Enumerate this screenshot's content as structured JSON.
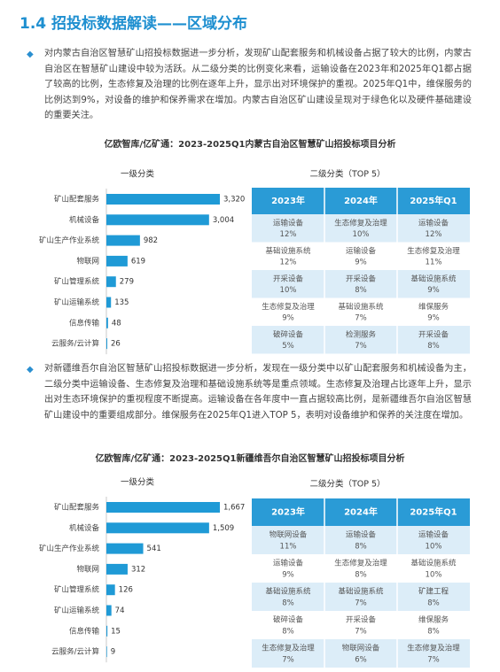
{
  "header": {
    "title": "1.4 招投标数据解读——区域分布"
  },
  "sections": [
    {
      "paragraph": "对内蒙古自治区智慧矿山招投标数据进一步分析，发现矿山配套服务和机械设备占据了较大的比例，内蒙古自治区在智慧矿山建设中较为活跃。从二级分类的比例变化来看，运输设备在2023年和2025年Q1都占据了较高的比例，生态修复及治理的比例在逐年上升，显示出对环境保护的重视。2025年Q1中，维保服务的比例达到9%，对设备的维护和保养需求在增加。内蒙古自治区矿山建设呈现对于绿色化以及硬件基础建设的重要关注。",
      "chart_title": "亿欧智库/亿矿通：2023-2025Q1内蒙古自治区智慧矿山招投标项目分析",
      "table": {
        "title": "二级分类（TOP 5）",
        "columns": [
          "2023年",
          "2024年",
          "2025年Q1"
        ],
        "rows": [
          [
            {
              "name": "运输设备",
              "share": "12%"
            },
            {
              "name": "生态修复及治理",
              "share": "10%"
            },
            {
              "name": "运输设备",
              "share": "12%"
            }
          ],
          [
            {
              "name": "基础设施系统",
              "share": "12%"
            },
            {
              "name": "运输设备",
              "share": "9%"
            },
            {
              "name": "生态修复及治理",
              "share": "11%"
            }
          ],
          [
            {
              "name": "开采设备",
              "share": "10%"
            },
            {
              "name": "开采设备",
              "share": "8%"
            },
            {
              "name": "基础设施系统",
              "share": "9%"
            }
          ],
          [
            {
              "name": "生态修复及治理",
              "share": "9%"
            },
            {
              "name": "基础设施系统",
              "share": "7%"
            },
            {
              "name": "维保服务",
              "share": "9%"
            }
          ],
          [
            {
              "name": "破碎设备",
              "share": "5%"
            },
            {
              "name": "检测服务",
              "share": "7%"
            },
            {
              "name": "开采设备",
              "share": "8%"
            }
          ]
        ]
      }
    },
    {
      "paragraph": "对新疆维吾尔自治区智慧矿山招投标数据进一步分析，发现在一级分类中以矿山配套服务和机械设备为主，二级分类中运输设备、生态修复及治理和基础设施系统等是重点领域。生态修复及治理占比逐年上升，显示出对生态环境保护的重视程度不断提高。运输设备在各年度中一直占据较高比例，是新疆维吾尔自治区智慧矿山建设中的重要组成部分。维保服务在2025年Q1进入TOP 5，表明对设备维护和保养的关注度在增加。",
      "chart_title": "亿欧智库/亿矿通：2023-2025Q1新疆维吾尔自治区智慧矿山招投标项目分析",
      "table": {
        "title": "二级分类（TOP 5）",
        "columns": [
          "2023年",
          "2024年",
          "2025年Q1"
        ],
        "rows": [
          [
            {
              "name": "物联网设备",
              "share": "11%"
            },
            {
              "name": "运输设备",
              "share": "8%"
            },
            {
              "name": "运输设备",
              "share": "10%"
            }
          ],
          [
            {
              "name": "运输设备",
              "share": "9%"
            },
            {
              "name": "生态修复及治理",
              "share": "8%"
            },
            {
              "name": "基础设施系统",
              "share": "10%"
            }
          ],
          [
            {
              "name": "基础设施系统",
              "share": "8%"
            },
            {
              "name": "基础设施系统",
              "share": "7%"
            },
            {
              "name": "矿建工程",
              "share": "8%"
            }
          ],
          [
            {
              "name": "破碎设备",
              "share": "8%"
            },
            {
              "name": "开采设备",
              "share": "7%"
            },
            {
              "name": "维保服务",
              "share": "8%"
            }
          ],
          [
            {
              "name": "生态修复及治理",
              "share": "7%"
            },
            {
              "name": "物联网设备",
              "share": "6%"
            },
            {
              "name": "生态修复及治理",
              "share": "7%"
            }
          ]
        ]
      }
    }
  ],
  "chart_data": [
    {
      "type": "bar",
      "orientation": "horizontal",
      "title": "一级分类",
      "color": "#1f9ad6",
      "categories": [
        "矿山配套服务",
        "机械设备",
        "矿山生产作业系统",
        "物联网",
        "矿山管理系统",
        "矿山运输系统",
        "信息传输",
        "云服务/云计算"
      ],
      "values": [
        3320,
        3004,
        982,
        619,
        279,
        135,
        48,
        26
      ],
      "value_labels": [
        "3,320",
        "3,004",
        "982",
        "619",
        "279",
        "135",
        "48",
        "26"
      ]
    },
    {
      "type": "bar",
      "orientation": "horizontal",
      "title": "一级分类",
      "color": "#1f9ad6",
      "categories": [
        "矿山配套服务",
        "机械设备",
        "矿山生产作业系统",
        "物联网",
        "矿山管理系统",
        "矿山运输系统",
        "信息传输",
        "云服务/云计算"
      ],
      "values": [
        1667,
        1509,
        541,
        312,
        126,
        74,
        15,
        9
      ],
      "value_labels": [
        "1,667",
        "1,509",
        "541",
        "312",
        "126",
        "74",
        "15",
        "9"
      ]
    }
  ]
}
